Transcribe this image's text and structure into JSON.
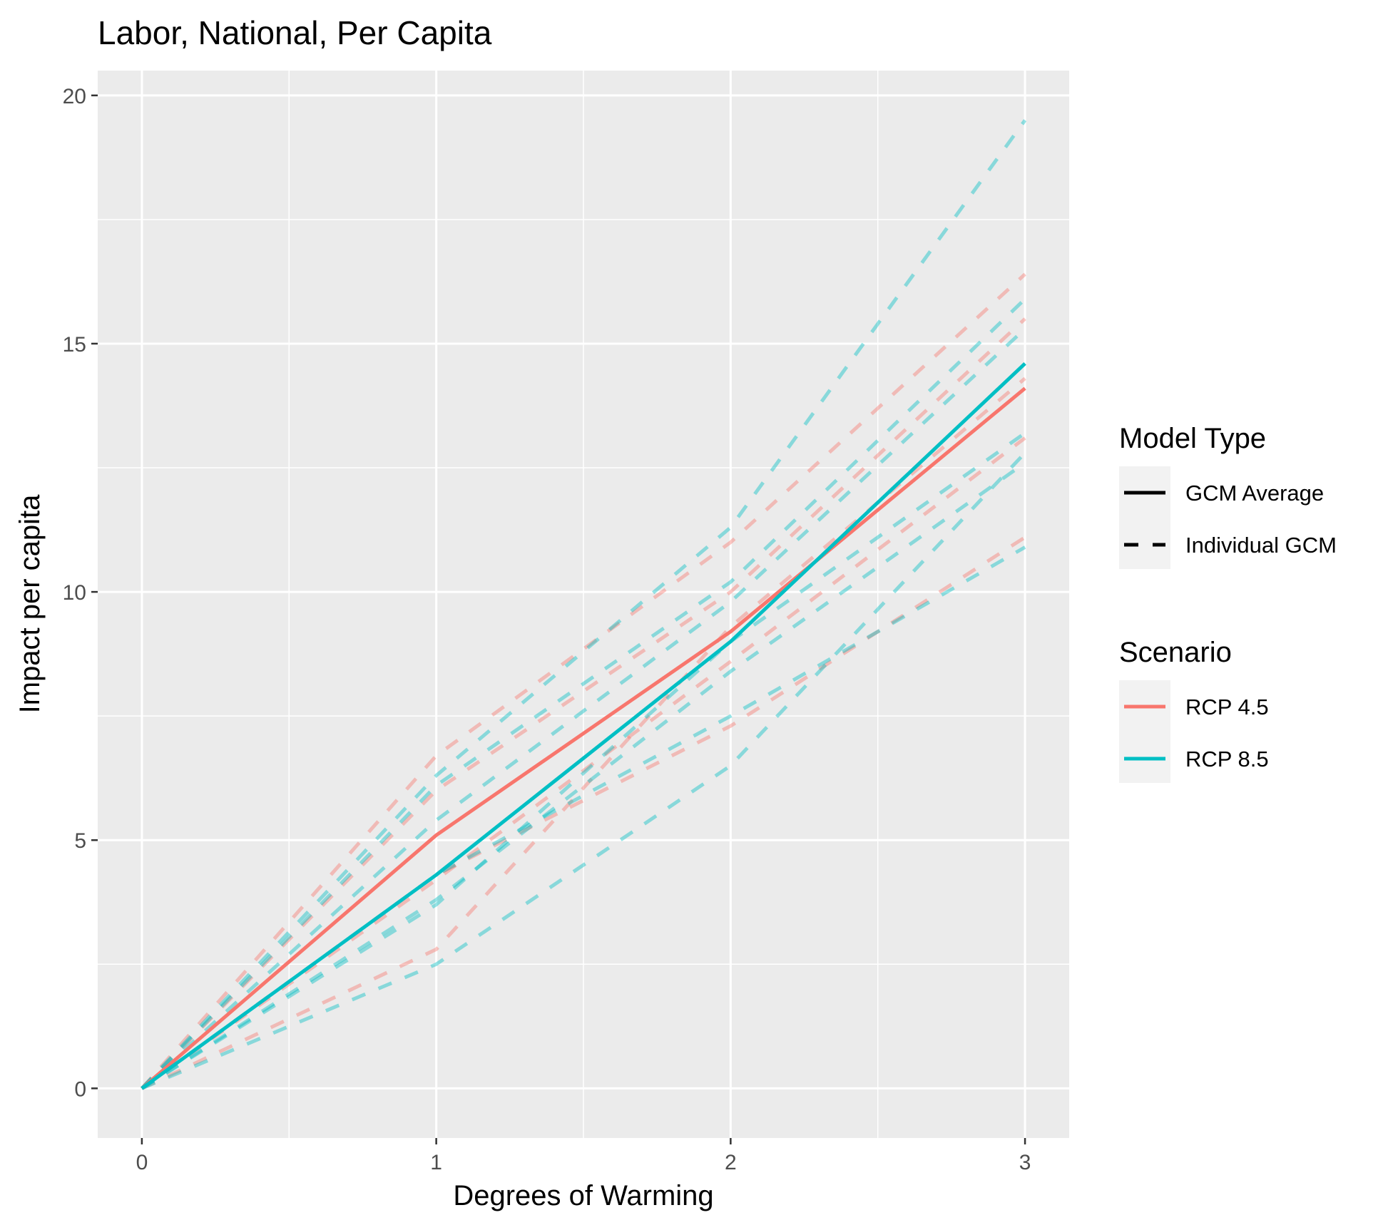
{
  "chart_data": {
    "type": "line",
    "title": "Labor, National, Per Capita",
    "xlabel": "Degrees of Warming",
    "ylabel": "Impact per capita",
    "xlim": [
      -0.15,
      3.15
    ],
    "ylim": [
      -1,
      20.5
    ],
    "x_ticks": [
      0,
      1,
      2,
      3
    ],
    "y_ticks": [
      0,
      5,
      10,
      15,
      20
    ],
    "x_tick_labels": [
      "0",
      "1",
      "2",
      "3"
    ],
    "y_tick_labels": [
      "0",
      "5",
      "10",
      "15",
      "20"
    ],
    "x": [
      0,
      1,
      2,
      3
    ],
    "grid": true,
    "legend_position": "right",
    "legends": [
      {
        "title": "Model Type",
        "entries": [
          {
            "label": "GCM Average",
            "style": "solid"
          },
          {
            "label": "Individual GCM",
            "style": "dashed"
          }
        ]
      },
      {
        "title": "Scenario",
        "entries": [
          {
            "label": "RCP 4.5",
            "color": "#F8766D"
          },
          {
            "label": "RCP 8.5",
            "color": "#00BFC4"
          }
        ]
      }
    ],
    "series": [
      {
        "scenario": "RCP 4.5",
        "model_type": "Individual GCM",
        "color": "#F8766D",
        "values": [
          0,
          6.7,
          11.0,
          16.4
        ]
      },
      {
        "scenario": "RCP 4.5",
        "model_type": "Individual GCM",
        "color": "#F8766D",
        "values": [
          0,
          6.0,
          10.0,
          15.5
        ]
      },
      {
        "scenario": "RCP 4.5",
        "model_type": "Individual GCM",
        "color": "#F8766D",
        "values": [
          0,
          4.2,
          8.6,
          13.1
        ]
      },
      {
        "scenario": "RCP 4.5",
        "model_type": "Individual GCM",
        "color": "#F8766D",
        "values": [
          0,
          4.3,
          7.3,
          11.1
        ]
      },
      {
        "scenario": "RCP 4.5",
        "model_type": "Individual GCM",
        "color": "#F8766D",
        "values": [
          0,
          2.8,
          9.3,
          14.3
        ]
      },
      {
        "scenario": "RCP 8.5",
        "model_type": "Individual GCM",
        "color": "#00BFC4",
        "values": [
          0,
          6.3,
          11.3,
          19.5
        ]
      },
      {
        "scenario": "RCP 8.5",
        "model_type": "Individual GCM",
        "color": "#00BFC4",
        "values": [
          0,
          6.1,
          10.2,
          15.9
        ]
      },
      {
        "scenario": "RCP 8.5",
        "model_type": "Individual GCM",
        "color": "#00BFC4",
        "values": [
          0,
          5.4,
          9.8,
          15.3
        ]
      },
      {
        "scenario": "RCP 8.5",
        "model_type": "Individual GCM",
        "color": "#00BFC4",
        "values": [
          0,
          3.7,
          9.0,
          13.2
        ]
      },
      {
        "scenario": "RCP 8.5",
        "model_type": "Individual GCM",
        "color": "#00BFC4",
        "values": [
          0,
          4.3,
          7.5,
          10.9
        ]
      },
      {
        "scenario": "RCP 8.5",
        "model_type": "Individual GCM",
        "color": "#00BFC4",
        "values": [
          0,
          2.5,
          6.5,
          12.8
        ]
      },
      {
        "scenario": "RCP 8.5",
        "model_type": "Individual GCM",
        "color": "#00BFC4",
        "values": [
          0,
          3.8,
          8.4,
          12.6
        ]
      },
      {
        "scenario": "RCP 4.5",
        "model_type": "GCM Average",
        "color": "#F8766D",
        "values": [
          0,
          5.1,
          9.2,
          14.1
        ]
      },
      {
        "scenario": "RCP 8.5",
        "model_type": "GCM Average",
        "color": "#00BFC4",
        "values": [
          0,
          4.3,
          9.0,
          14.6
        ]
      }
    ]
  }
}
